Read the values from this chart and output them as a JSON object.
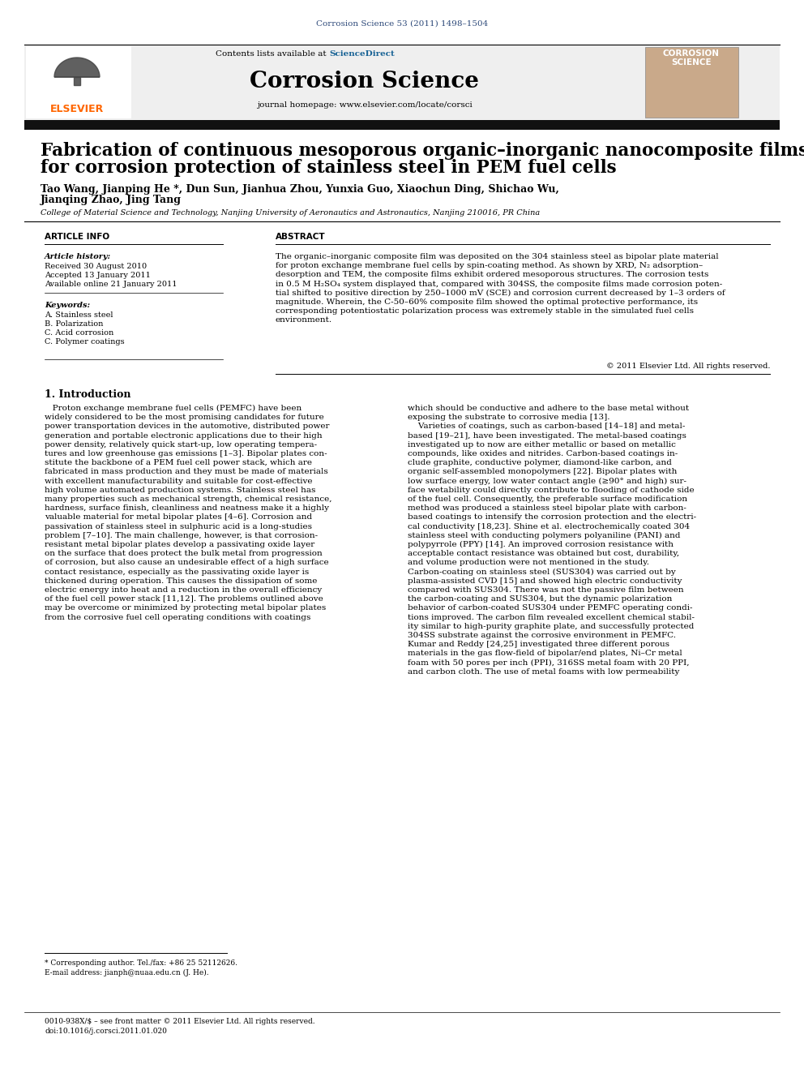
{
  "journal_citation": "Corrosion Science 53 (2011) 1498–1504",
  "journal_name": "Corrosion Science",
  "contents_text": "Contents lists available at ",
  "science_direct": "ScienceDirect",
  "journal_homepage": "journal homepage: www.elsevier.com/locate/corsci",
  "paper_title_line1": "Fabrication of continuous mesoporous organic–inorganic nanocomposite films",
  "paper_title_line2": "for corrosion protection of stainless steel in PEM fuel cells",
  "authors_line1": "Tao Wang, Jianping He *, Dun Sun, Jianhua Zhou, Yunxia Guo, Xiaochun Ding, Shichao Wu,",
  "authors_line2": "Jianqing Zhao, Jing Tang",
  "affiliation": "College of Material Science and Technology, Nanjing University of Aeronautics and Astronautics, Nanjing 210016, PR China",
  "article_info_header": "ARTICLE INFO",
  "abstract_header": "ABSTRACT",
  "article_history_label": "Article history:",
  "received": "Received 30 August 2010",
  "accepted": "Accepted 13 January 2011",
  "available": "Available online 21 January 2011",
  "keywords_label": "Keywords:",
  "keyword1": "A. Stainless steel",
  "keyword2": "B. Polarization",
  "keyword3": "C. Acid corrosion",
  "keyword4": "C. Polymer coatings",
  "abstract_lines": [
    "The organic–inorganic composite film was deposited on the 304 stainless steel as bipolar plate material",
    "for proton exchange membrane fuel cells by spin-coating method. As shown by XRD, N₂ adsorption–",
    "desorption and TEM, the composite films exhibit ordered mesoporous structures. The corrosion tests",
    "in 0.5 M H₂SO₄ system displayed that, compared with 304SS, the composite films made corrosion poten-",
    "tial shifted to positive direction by 250–1000 mV (SCE) and corrosion current decreased by 1–3 orders of",
    "magnitude. Wherein, the C-50–60% composite film showed the optimal protective performance, its",
    "corresponding potentiostatic polarization process was extremely stable in the simulated fuel cells",
    "environment."
  ],
  "copyright": "© 2011 Elsevier Ltd. All rights reserved.",
  "intro_header": "1. Introduction",
  "intro_col1": [
    "   Proton exchange membrane fuel cells (PEMFC) have been",
    "widely considered to be the most promising candidates for future",
    "power transportation devices in the automotive, distributed power",
    "generation and portable electronic applications due to their high",
    "power density, relatively quick start-up, low operating tempera-",
    "tures and low greenhouse gas emissions [1–3]. Bipolar plates con-",
    "stitute the backbone of a PEM fuel cell power stack, which are",
    "fabricated in mass production and they must be made of materials",
    "with excellent manufacturability and suitable for cost-effective",
    "high volume automated production systems. Stainless steel has",
    "many properties such as mechanical strength, chemical resistance,",
    "hardness, surface finish, cleanliness and neatness make it a highly",
    "valuable material for metal bipolar plates [4–6]. Corrosion and",
    "passivation of stainless steel in sulphuric acid is a long-studies",
    "problem [7–10]. The main challenge, however, is that corrosion-",
    "resistant metal bipolar plates develop a passivating oxide layer",
    "on the surface that does protect the bulk metal from progression",
    "of corrosion, but also cause an undesirable effect of a high surface",
    "contact resistance, especially as the passivating oxide layer is",
    "thickened during operation. This causes the dissipation of some",
    "electric energy into heat and a reduction in the overall efficiency",
    "of the fuel cell power stack [11,12]. The problems outlined above",
    "may be overcome or minimized by protecting metal bipolar plates",
    "from the corrosive fuel cell operating conditions with coatings"
  ],
  "intro_col2": [
    "which should be conductive and adhere to the base metal without",
    "exposing the substrate to corrosive media [13].",
    "    Varieties of coatings, such as carbon-based [14–18] and metal-",
    "based [19–21], have been investigated. The metal-based coatings",
    "investigated up to now are either metallic or based on metallic",
    "compounds, like oxides and nitrides. Carbon-based coatings in-",
    "clude graphite, conductive polymer, diamond-like carbon, and",
    "organic self-assembled monopolymers [22]. Bipolar plates with",
    "low surface energy, low water contact angle (≥90° and high) sur-",
    "face wetability could directly contribute to flooding of cathode side",
    "of the fuel cell. Consequently, the preferable surface modification",
    "method was produced a stainless steel bipolar plate with carbon-",
    "based coatings to intensify the corrosion protection and the electri-",
    "cal conductivity [18,23]. Shine et al. electrochemically coated 304",
    "stainless steel with conducting polymers polyaniline (PANI) and",
    "polypyrrole (PPY) [14]. An improved corrosion resistance with",
    "acceptable contact resistance was obtained but cost, durability,",
    "and volume production were not mentioned in the study.",
    "Carbon-coating on stainless steel (SUS304) was carried out by",
    "plasma-assisted CVD [15] and showed high electric conductivity",
    "compared with SUS304. There was not the passive film between",
    "the carbon-coating and SUS304, but the dynamic polarization",
    "behavior of carbon-coated SUS304 under PEMFC operating condi-",
    "tions improved. The carbon film revealed excellent chemical stabil-",
    "ity similar to high-purity graphite plate, and successfully protected",
    "304SS substrate against the corrosive environment in PEMFC.",
    "Kumar and Reddy [24,25] investigated three different porous",
    "materials in the gas flow-field of bipolar/end plates, Ni–Cr metal",
    "foam with 50 pores per inch (PPI), 316SS metal foam with 20 PPI,",
    "and carbon cloth. The use of metal foams with low permeability"
  ],
  "footnote1": "* Corresponding author. Tel./fax: +86 25 52112626.",
  "footnote2": "E-mail address: jianph@nuaa.edu.cn (J. He).",
  "footer1": "0010-938X/$ – see front matter © 2011 Elsevier Ltd. All rights reserved.",
  "footer2": "doi:10.1016/j.corsci.2011.01.020",
  "header_color": "#2e4a7a",
  "sciencedirect_color": "#1a6496",
  "elsevier_color": "#ff6600",
  "bg_gray": "#efefef"
}
